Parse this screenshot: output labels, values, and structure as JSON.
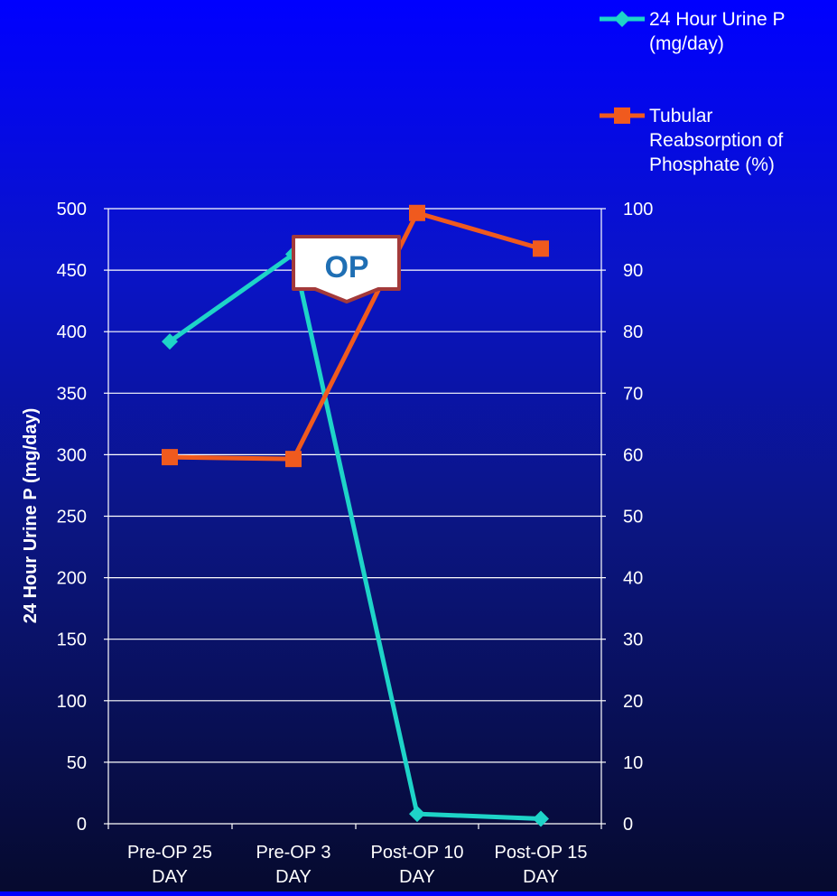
{
  "chart_data": {
    "type": "line",
    "categories": [
      [
        "Pre-OP 25",
        "DAY"
      ],
      [
        "Pre-OP 3",
        "DAY"
      ],
      [
        "Post-OP 10",
        "DAY"
      ],
      [
        "Post-OP 15",
        "DAY"
      ]
    ],
    "title": "",
    "xlabel": "",
    "ylabel": "24 Hour Urine P (mg/day)",
    "y2label": "",
    "ylim": [
      0,
      500
    ],
    "y2lim": [
      0,
      100
    ],
    "yticks": [
      "0",
      "50",
      "100",
      "150",
      "200",
      "250",
      "300",
      "350",
      "400",
      "450",
      "500"
    ],
    "y2ticks": [
      "0",
      "10",
      "20",
      "30",
      "40",
      "50",
      "60",
      "70",
      "80",
      "90",
      "100"
    ],
    "grid": true,
    "legend_position": "top-right",
    "series": [
      {
        "name_lines": [
          "24 Hour Urine P",
          "(mg/day)"
        ],
        "axis": "left",
        "marker": "diamond",
        "color": "#1ed4c8",
        "values": [
          392,
          463,
          8,
          4
        ]
      },
      {
        "name_lines": [
          "Tubular",
          "Reabsorption of",
          "Phosphate (%)"
        ],
        "axis": "right",
        "marker": "square",
        "color": "#f05a1e",
        "values": [
          59.6,
          59.3,
          99.3,
          93.5
        ]
      }
    ],
    "annotations": [
      {
        "text": "OP",
        "color": "#1f6fb4",
        "border_color": "#a33a3a"
      }
    ]
  }
}
